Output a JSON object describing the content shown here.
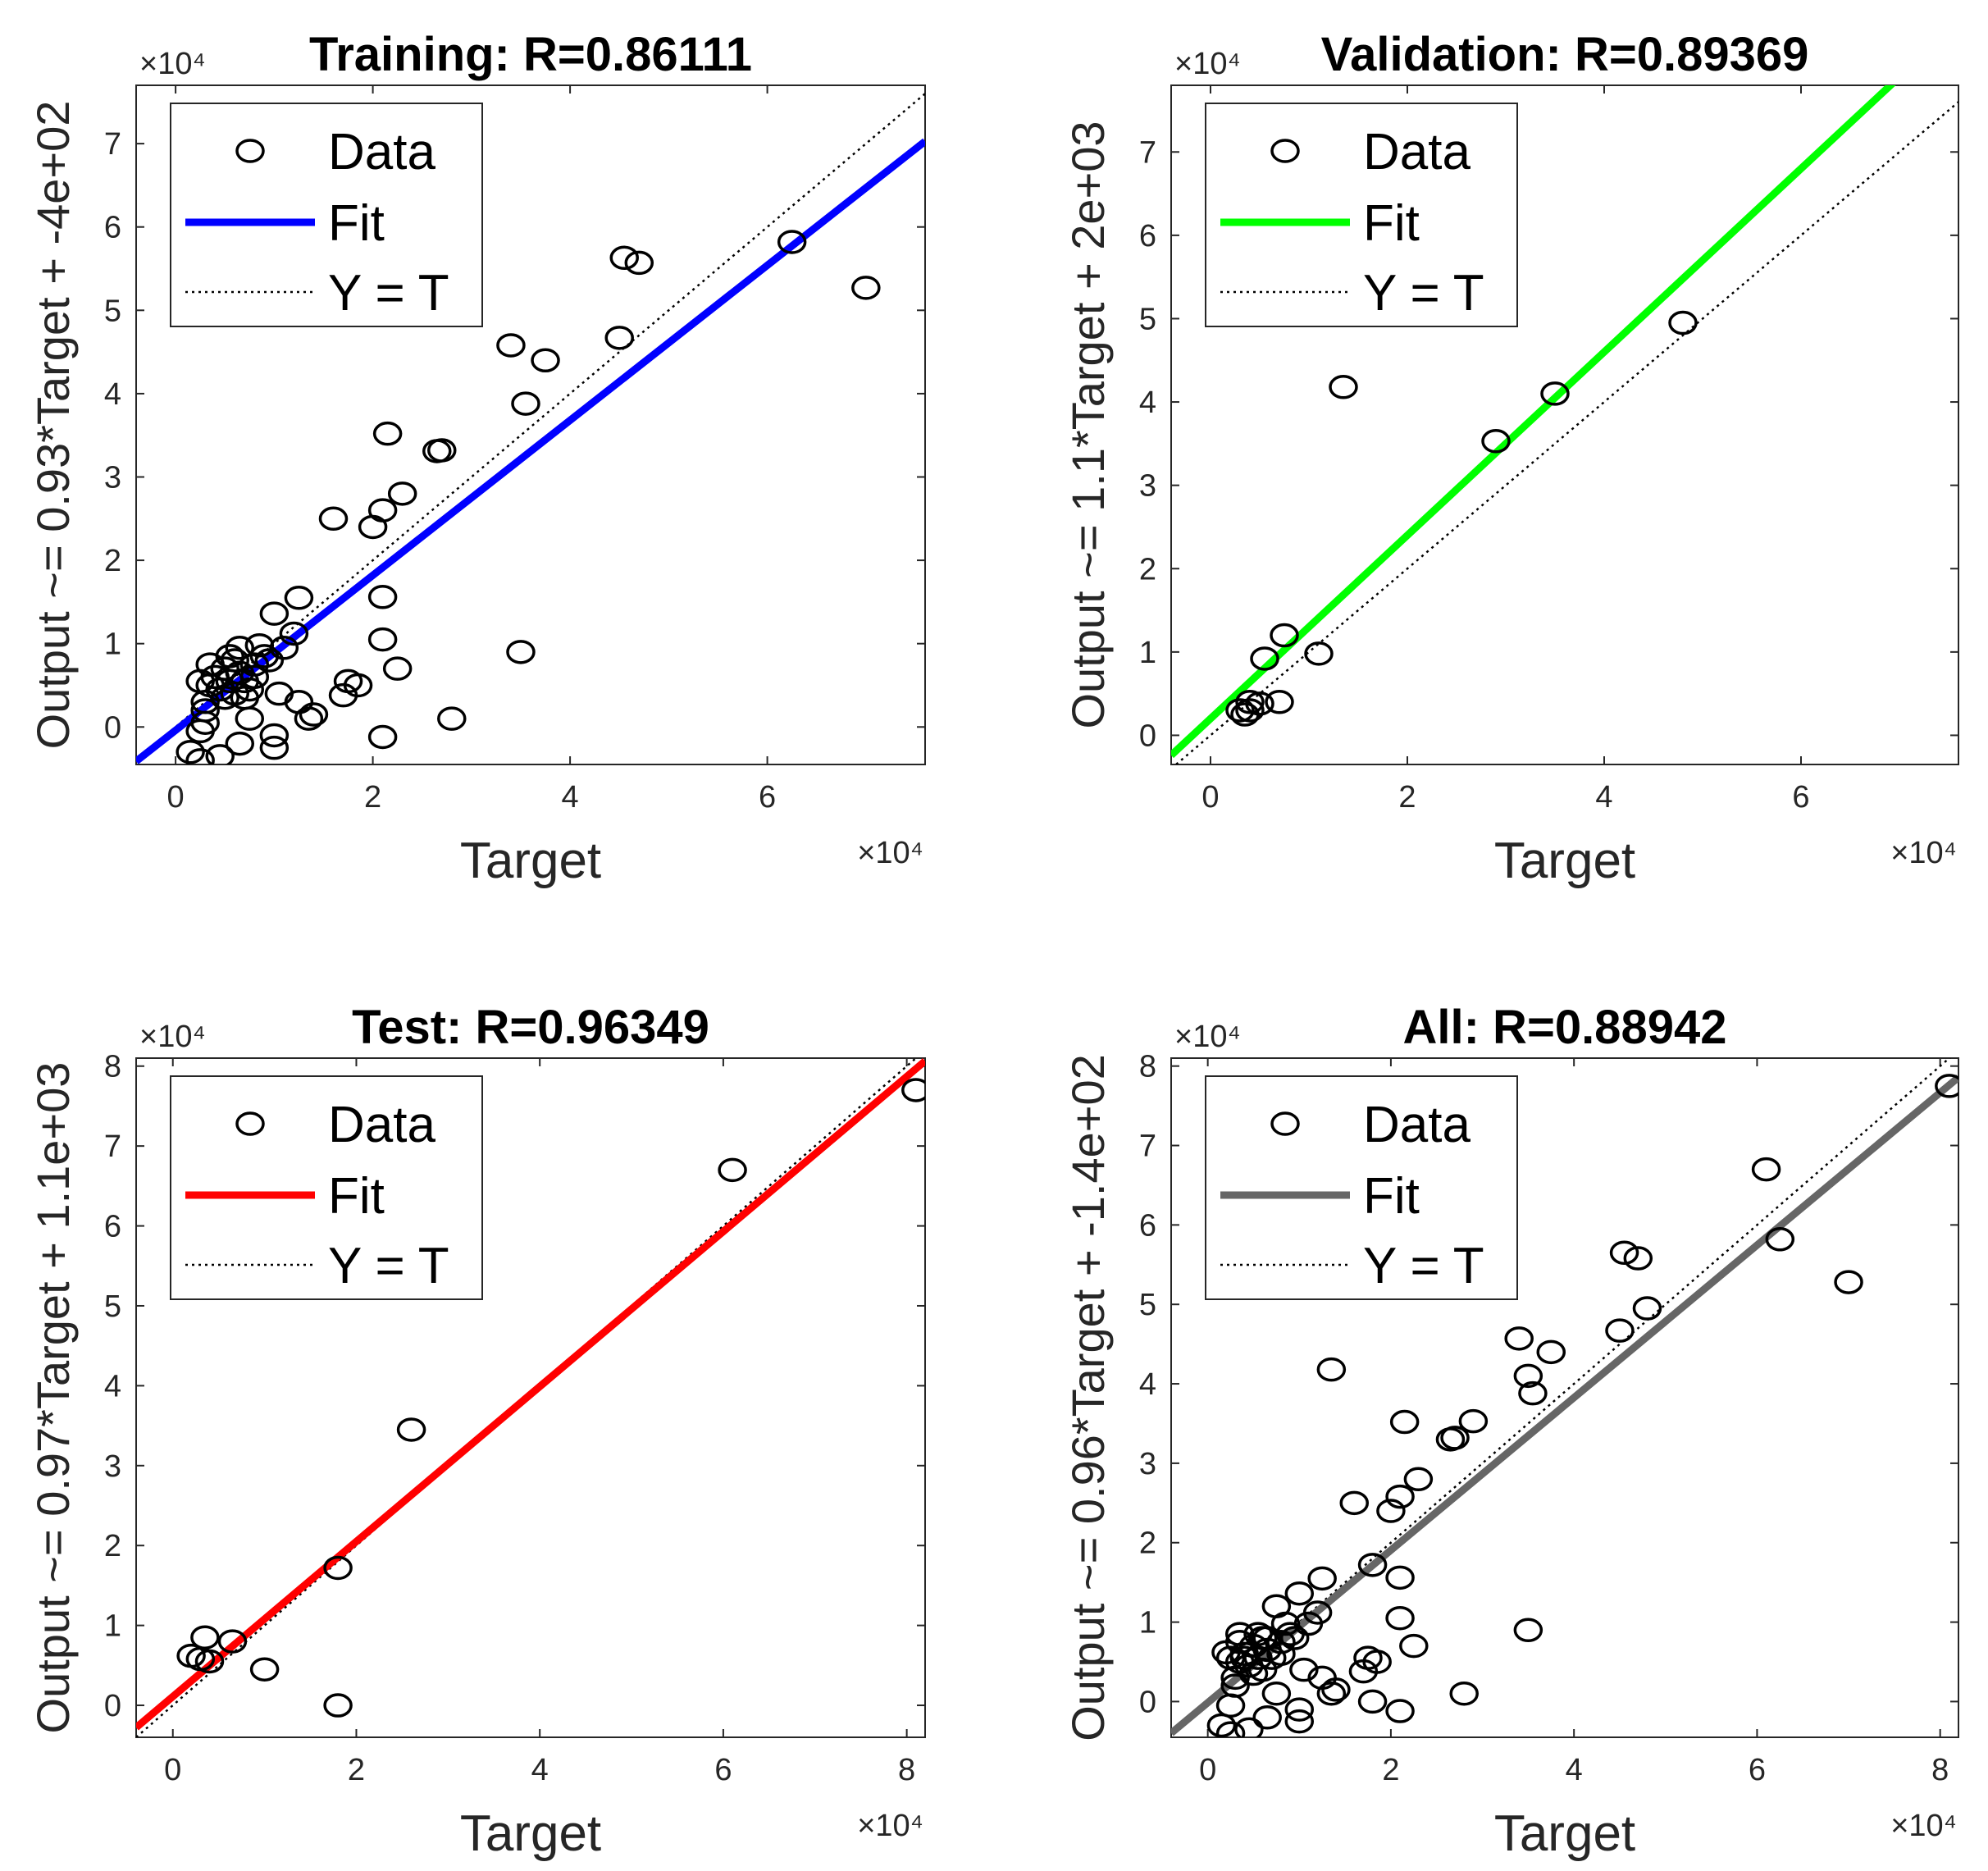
{
  "chart_data": [
    {
      "type": "scatter",
      "title": "Training: R=0.86111",
      "xlabel": "Target",
      "ylabel": "Output ~= 0.93*Target + -4e+02",
      "exponent_label": "×10⁴",
      "xlim": [
        -0.4,
        7.6
      ],
      "ylim": [
        -0.45,
        7.7
      ],
      "xticks": [
        0,
        2,
        4,
        6
      ],
      "yticks": [
        0,
        1,
        2,
        3,
        4,
        5,
        6,
        7
      ],
      "fit": {
        "slope": 0.93,
        "intercept": -0.04,
        "color": "#0000ff"
      },
      "legend": [
        "Data",
        "Fit",
        "Y = T"
      ],
      "legend_placement": "top-left",
      "points": [
        [
          6.25,
          5.82
        ],
        [
          7.0,
          5.27
        ],
        [
          4.55,
          5.63
        ],
        [
          4.7,
          5.57
        ],
        [
          4.5,
          4.67
        ],
        [
          3.4,
          4.58
        ],
        [
          3.75,
          4.4
        ],
        [
          3.55,
          3.88
        ],
        [
          2.15,
          3.52
        ],
        [
          2.65,
          3.31
        ],
        [
          2.7,
          3.32
        ],
        [
          2.3,
          2.8
        ],
        [
          2.1,
          2.6
        ],
        [
          1.6,
          2.5
        ],
        [
          2.0,
          2.4
        ],
        [
          2.1,
          1.56
        ],
        [
          1.25,
          1.55
        ],
        [
          1.0,
          1.36
        ],
        [
          1.2,
          1.12
        ],
        [
          0.85,
          0.98
        ],
        [
          1.1,
          0.95
        ],
        [
          2.1,
          1.05
        ],
        [
          3.5,
          0.9
        ],
        [
          0.65,
          0.95
        ],
        [
          0.95,
          0.8
        ],
        [
          2.25,
          0.7
        ],
        [
          1.75,
          0.55
        ],
        [
          1.85,
          0.5
        ],
        [
          1.7,
          0.38
        ],
        [
          1.25,
          0.3
        ],
        [
          1.05,
          0.4
        ],
        [
          0.75,
          0.45
        ],
        [
          2.8,
          0.1
        ],
        [
          1.4,
          0.15
        ],
        [
          1.35,
          0.1
        ],
        [
          2.1,
          -0.12
        ],
        [
          1.0,
          -0.1
        ],
        [
          1.0,
          -0.25
        ],
        [
          0.75,
          0.1
        ],
        [
          0.65,
          -0.2
        ],
        [
          0.25,
          -0.05
        ],
        [
          0.3,
          0.05
        ],
        [
          0.15,
          -0.3
        ],
        [
          0.25,
          -0.4
        ],
        [
          0.45,
          -0.35
        ],
        [
          0.3,
          0.3
        ],
        [
          0.35,
          0.5
        ],
        [
          0.4,
          0.6
        ],
        [
          0.5,
          0.7
        ],
        [
          0.6,
          0.8
        ],
        [
          0.45,
          0.45
        ],
        [
          0.55,
          0.55
        ],
        [
          0.65,
          0.65
        ],
        [
          0.25,
          0.55
        ],
        [
          0.35,
          0.75
        ],
        [
          0.7,
          0.55
        ],
        [
          0.8,
          0.75
        ],
        [
          0.9,
          0.85
        ],
        [
          0.5,
          0.35
        ],
        [
          0.6,
          0.4
        ],
        [
          0.3,
          0.2
        ],
        [
          0.8,
          0.6
        ],
        [
          0.55,
          0.85
        ],
        [
          0.7,
          0.35
        ]
      ]
    },
    {
      "type": "scatter",
      "title": "Validation: R=0.89369",
      "xlabel": "Target",
      "ylabel": "Output ~= 1.1*Target + 2e+03",
      "exponent_label": "×10⁴",
      "xlim": [
        -0.4,
        7.6
      ],
      "ylim": [
        -0.35,
        7.8
      ],
      "xticks": [
        0,
        2,
        4,
        6
      ],
      "yticks": [
        0,
        1,
        2,
        3,
        4,
        5,
        6,
        7
      ],
      "fit": {
        "slope": 1.1,
        "intercept": 0.2,
        "color": "#00ff00"
      },
      "legend": [
        "Data",
        "Fit",
        "Y = T"
      ],
      "legend_placement": "top-left",
      "points": [
        [
          4.8,
          4.95
        ],
        [
          3.5,
          4.1
        ],
        [
          1.35,
          4.18
        ],
        [
          2.9,
          3.53
        ],
        [
          0.75,
          1.2
        ],
        [
          1.1,
          0.98
        ],
        [
          0.55,
          0.92
        ],
        [
          0.7,
          0.4
        ],
        [
          0.5,
          0.38
        ],
        [
          0.4,
          0.4
        ],
        [
          0.3,
          0.3
        ],
        [
          0.35,
          0.25
        ],
        [
          0.4,
          0.3
        ]
      ]
    },
    {
      "type": "scatter",
      "title": "Test: R=0.96349",
      "xlabel": "Target",
      "ylabel": "Output ~= 0.97*Target + 1.1e+03",
      "exponent_label": "×10⁴",
      "xlim": [
        -0.4,
        8.2
      ],
      "ylim": [
        -0.4,
        8.1
      ],
      "xticks": [
        0,
        2,
        4,
        6,
        8
      ],
      "yticks": [
        0,
        1,
        2,
        3,
        4,
        5,
        6,
        7,
        8
      ],
      "fit": {
        "slope": 0.97,
        "intercept": 0.11,
        "color": "#ff0000"
      },
      "legend": [
        "Data",
        "Fit",
        "Y = T"
      ],
      "legend_placement": "top-left",
      "points": [
        [
          8.1,
          7.7
        ],
        [
          6.1,
          6.7
        ],
        [
          2.6,
          3.45
        ],
        [
          1.8,
          1.72
        ],
        [
          1.8,
          0.0
        ],
        [
          1.0,
          0.45
        ],
        [
          0.65,
          0.8
        ],
        [
          0.35,
          0.85
        ],
        [
          0.2,
          0.62
        ],
        [
          0.3,
          0.58
        ],
        [
          0.4,
          0.55
        ]
      ]
    },
    {
      "type": "scatter",
      "title": "All: R=0.88942",
      "xlabel": "Target",
      "ylabel": "Output ~= 0.96*Target + -1.4e+02",
      "exponent_label": "×10⁴",
      "xlim": [
        -0.4,
        8.2
      ],
      "ylim": [
        -0.45,
        8.1
      ],
      "xticks": [
        0,
        2,
        4,
        6,
        8
      ],
      "yticks": [
        0,
        1,
        2,
        3,
        4,
        5,
        6,
        7,
        8
      ],
      "fit": {
        "slope": 0.96,
        "intercept": -0.014,
        "color": "#666666"
      },
      "legend": [
        "Data",
        "Fit",
        "Y = T"
      ],
      "legend_placement": "top-left",
      "points": [
        [
          8.1,
          7.75
        ],
        [
          6.1,
          6.7
        ],
        [
          6.25,
          5.82
        ],
        [
          7.0,
          5.28
        ],
        [
          4.55,
          5.65
        ],
        [
          4.7,
          5.58
        ],
        [
          4.8,
          4.95
        ],
        [
          4.5,
          4.67
        ],
        [
          3.4,
          4.57
        ],
        [
          3.75,
          4.4
        ],
        [
          3.5,
          4.1
        ],
        [
          3.55,
          3.88
        ],
        [
          1.35,
          4.18
        ],
        [
          2.15,
          3.52
        ],
        [
          2.9,
          3.53
        ],
        [
          2.65,
          3.3
        ],
        [
          2.7,
          3.32
        ],
        [
          2.3,
          2.8
        ],
        [
          2.1,
          2.58
        ],
        [
          1.6,
          2.5
        ],
        [
          2.0,
          2.4
        ],
        [
          1.8,
          1.72
        ],
        [
          2.1,
          1.56
        ],
        [
          1.25,
          1.55
        ],
        [
          1.0,
          1.36
        ],
        [
          1.2,
          1.12
        ],
        [
          0.75,
          1.2
        ],
        [
          1.1,
          0.98
        ],
        [
          0.85,
          0.98
        ],
        [
          2.1,
          1.05
        ],
        [
          3.5,
          0.9
        ],
        [
          0.95,
          0.8
        ],
        [
          2.25,
          0.7
        ],
        [
          1.75,
          0.55
        ],
        [
          1.85,
          0.5
        ],
        [
          1.7,
          0.38
        ],
        [
          1.25,
          0.3
        ],
        [
          1.05,
          0.4
        ],
        [
          2.8,
          0.1
        ],
        [
          1.4,
          0.15
        ],
        [
          1.35,
          0.1
        ],
        [
          1.8,
          0.0
        ],
        [
          2.1,
          -0.12
        ],
        [
          1.0,
          -0.1
        ],
        [
          1.0,
          -0.25
        ],
        [
          0.75,
          0.1
        ],
        [
          0.65,
          -0.2
        ],
        [
          0.25,
          -0.05
        ],
        [
          0.15,
          -0.3
        ],
        [
          0.25,
          -0.4
        ],
        [
          0.45,
          -0.35
        ],
        [
          0.3,
          0.3
        ],
        [
          0.35,
          0.5
        ],
        [
          0.4,
          0.6
        ],
        [
          0.5,
          0.7
        ],
        [
          0.6,
          0.8
        ],
        [
          0.45,
          0.45
        ],
        [
          0.55,
          0.55
        ],
        [
          0.65,
          0.65
        ],
        [
          0.25,
          0.55
        ],
        [
          0.35,
          0.75
        ],
        [
          0.7,
          0.55
        ],
        [
          0.8,
          0.75
        ],
        [
          0.9,
          0.85
        ],
        [
          0.5,
          0.35
        ],
        [
          0.6,
          0.4
        ],
        [
          0.3,
          0.2
        ],
        [
          0.8,
          0.6
        ],
        [
          0.55,
          0.85
        ],
        [
          0.2,
          0.62
        ],
        [
          0.35,
          0.85
        ],
        [
          0.4,
          0.55
        ],
        [
          0.65,
          0.8
        ]
      ]
    }
  ]
}
